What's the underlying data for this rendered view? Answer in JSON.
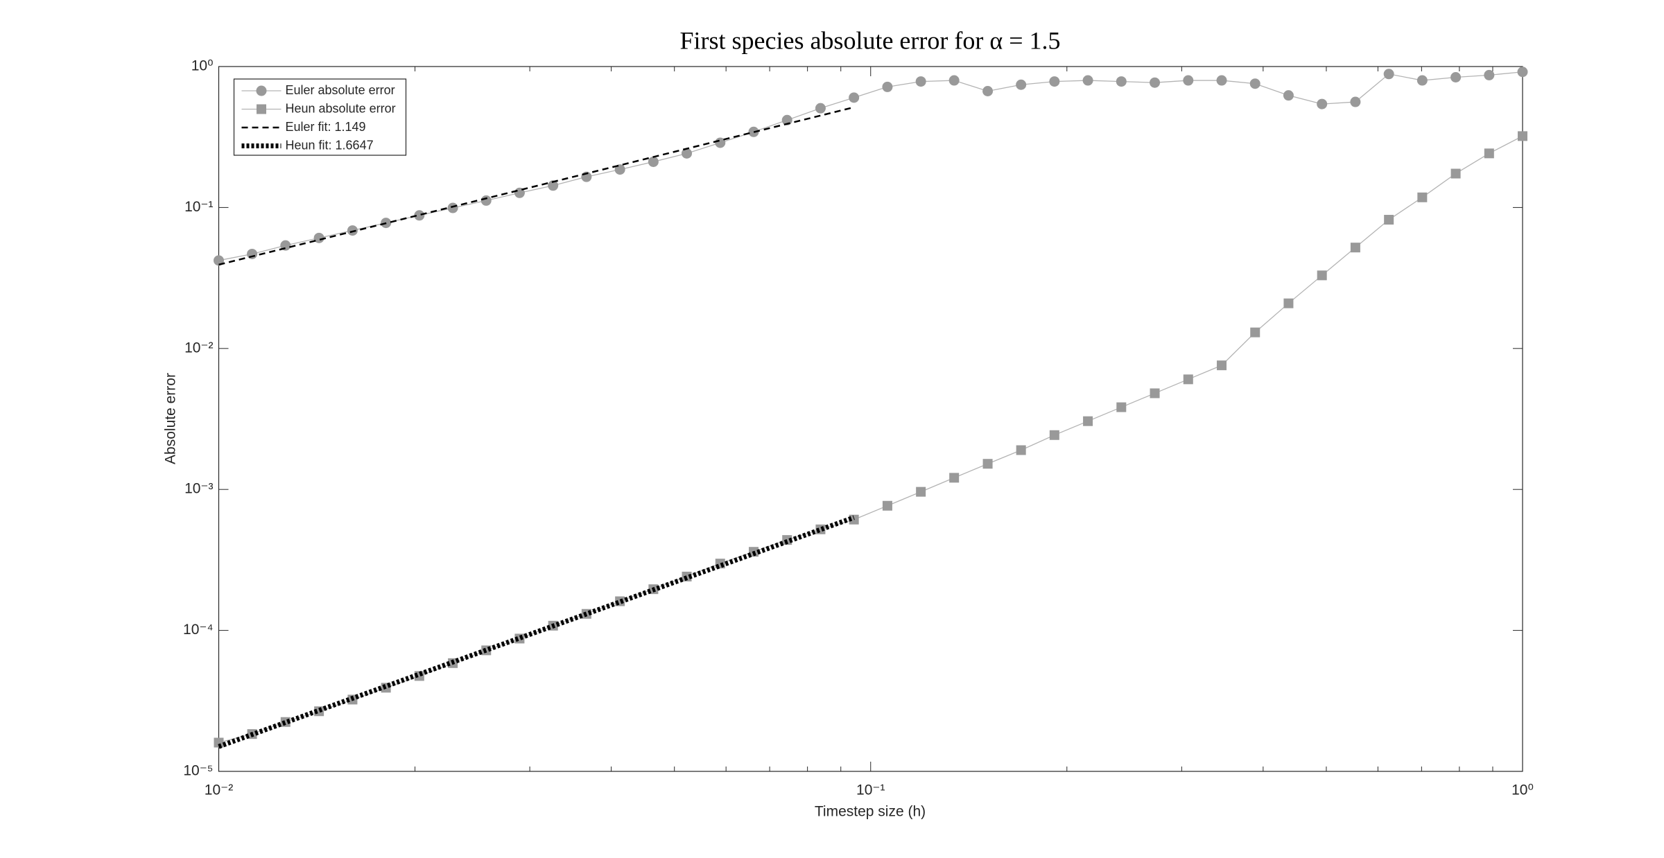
{
  "chart_data": {
    "type": "line",
    "title": "First species absolute error for α = 1.5",
    "xlabel": "Timestep size (h)",
    "ylabel": "Absolute error",
    "xscale": "log",
    "yscale": "log",
    "xlim": [
      0.01,
      1
    ],
    "ylim": [
      1e-05,
      1
    ],
    "xticks": [
      {
        "value": 0.01,
        "label": "10⁻²"
      },
      {
        "value": 0.1,
        "label": "10⁻¹"
      },
      {
        "value": 1,
        "label": "10⁰"
      }
    ],
    "xminorticks": [
      0.02,
      0.03,
      0.04,
      0.05,
      0.06,
      0.07,
      0.08,
      0.09,
      0.2,
      0.3,
      0.4,
      0.5,
      0.6,
      0.7,
      0.8,
      0.9
    ],
    "yticks": [
      {
        "value": 1e-05,
        "label": "10⁻⁵"
      },
      {
        "value": 0.0001,
        "label": "10⁻⁴"
      },
      {
        "value": 0.001,
        "label": "10⁻³"
      },
      {
        "value": 0.01,
        "label": "10⁻²"
      },
      {
        "value": 0.1,
        "label": "10⁻¹"
      },
      {
        "value": 1,
        "label": "10⁰"
      }
    ],
    "legend": "northwest",
    "x": [
      0.01,
      0.01125,
      0.01266,
      0.01425,
      0.01604,
      0.01805,
      0.02031,
      0.02286,
      0.02572,
      0.02894,
      0.03257,
      0.03665,
      0.04125,
      0.04642,
      0.05223,
      0.05878,
      0.06615,
      0.07444,
      0.08377,
      0.09427,
      0.1061,
      0.1194,
      0.1343,
      0.1512,
      0.1701,
      0.1914,
      0.2154,
      0.2424,
      0.2728,
      0.307,
      0.3455,
      0.3888,
      0.4375,
      0.4924,
      0.5541,
      0.6236,
      0.7017,
      0.7897,
      0.8887,
      1
    ],
    "series": [
      {
        "name": "Euler absolute error",
        "color": "#999999",
        "marker": "circle",
        "linestyle": "solid",
        "values": [
          0.0421,
          0.0468,
          0.0538,
          0.0608,
          0.0687,
          0.0778,
          0.0879,
          0.0993,
          0.112,
          0.127,
          0.143,
          0.165,
          0.186,
          0.211,
          0.242,
          0.288,
          0.344,
          0.417,
          0.506,
          0.602,
          0.717,
          0.783,
          0.797,
          0.669,
          0.743,
          0.783,
          0.797,
          0.783,
          0.769,
          0.797,
          0.797,
          0.756,
          0.624,
          0.542,
          0.561,
          0.885,
          0.797,
          0.839,
          0.869,
          0.916
        ]
      },
      {
        "name": "Heun absolute error",
        "color": "#999999",
        "marker": "square",
        "linestyle": "solid",
        "values": [
          1.6e-05,
          1.84e-05,
          2.24e-05,
          2.67e-05,
          3.23e-05,
          3.92e-05,
          4.75e-05,
          5.86e-05,
          7.22e-05,
          8.75e-05,
          0.000108,
          0.000131,
          0.000161,
          0.000196,
          0.000241,
          0.000298,
          0.000361,
          0.000438,
          0.000521,
          0.000611,
          0.000766,
          0.000962,
          0.00121,
          0.00152,
          0.0019,
          0.00243,
          0.00305,
          0.00383,
          0.00481,
          0.00604,
          0.00759,
          0.013,
          0.0209,
          0.033,
          0.052,
          0.0819,
          0.118,
          0.174,
          0.242,
          0.321
        ]
      },
      {
        "name": "Euler fit: 1.149",
        "color": "#000000",
        "marker": "none",
        "linestyle": "dashed",
        "x": [
          0.01,
          0.09427
        ],
        "values": [
          0.0393,
          0.514
        ]
      },
      {
        "name": "Heun fit: 1.6647",
        "color": "#000000",
        "marker": "none",
        "linestyle": "dotted",
        "x": [
          0.01,
          0.09427
        ],
        "values": [
          1.5e-05,
          0.000632
        ]
      }
    ]
  }
}
